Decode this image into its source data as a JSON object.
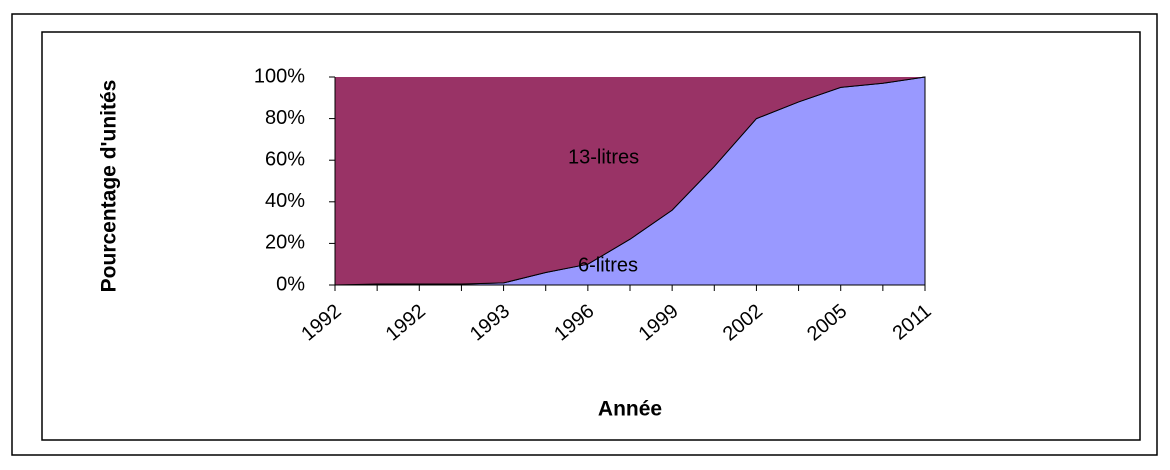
{
  "chart_data": {
    "type": "stacked_area",
    "y_label": "Pourcentage d'unités",
    "x_label": "Année",
    "categories": [
      "1992",
      null,
      "1992",
      null,
      "1993",
      null,
      "1996",
      null,
      "1999",
      null,
      "2002",
      null,
      "2005",
      null,
      "2011"
    ],
    "series": [
      {
        "name": "6-litres",
        "color": "#9999ff",
        "values": [
          0,
          0.5,
          0.5,
          0.5,
          1,
          6,
          10,
          22,
          36,
          57,
          80,
          88,
          95,
          97,
          100
        ]
      },
      {
        "name": "13-litres",
        "color": "#993366",
        "values": [
          100,
          99.5,
          99.5,
          99.5,
          99,
          94,
          90,
          78,
          64,
          43,
          20,
          12,
          5,
          3,
          0
        ]
      }
    ],
    "ylim": [
      0,
      100
    ],
    "yticks": [
      {
        "value": 0,
        "label": "0%"
      },
      {
        "value": 20,
        "label": "20%"
      },
      {
        "value": 40,
        "label": "40%"
      },
      {
        "value": 60,
        "label": "60%"
      },
      {
        "value": 80,
        "label": "80%"
      },
      {
        "value": 100,
        "label": "100%"
      }
    ]
  }
}
